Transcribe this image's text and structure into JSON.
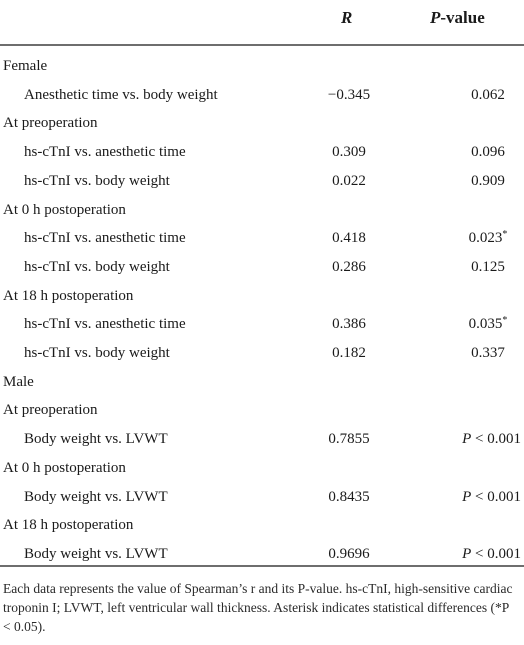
{
  "header": {
    "r_label": "R",
    "p_italic": "P",
    "p_rest": "-value"
  },
  "rows": [
    {
      "label": "Female",
      "indent": 0
    },
    {
      "label": "Anesthetic time vs. body weight",
      "indent": 1,
      "r": "−0.345",
      "p": "0.062"
    },
    {
      "label": "At preoperation",
      "indent": 0
    },
    {
      "label": "hs-cTnI vs. anesthetic time",
      "indent": 1,
      "r": "0.309",
      "p": "0.096"
    },
    {
      "label": "hs-cTnI vs. body weight",
      "indent": 1,
      "r": "0.022",
      "p": "0.909"
    },
    {
      "label": "At 0 h postoperation",
      "indent": 0
    },
    {
      "label": "hs-cTnI vs. anesthetic time",
      "indent": 1,
      "r": "0.418",
      "p": "0.023",
      "p_mark": "*"
    },
    {
      "label": "hs-cTnI vs. body weight",
      "indent": 1,
      "r": "0.286",
      "p": "0.125"
    },
    {
      "label": "At 18 h postoperation",
      "indent": 0
    },
    {
      "label": "hs-cTnI vs. anesthetic time",
      "indent": 1,
      "r": "0.386",
      "p": "0.035",
      "p_mark": "*"
    },
    {
      "label": "hs-cTnI vs. body weight",
      "indent": 1,
      "r": "0.182",
      "p": "0.337"
    },
    {
      "label": "Male",
      "indent": 0
    },
    {
      "label": "At preoperation",
      "indent": 0
    },
    {
      "label": "Body weight vs. LVWT",
      "indent": 1,
      "r": "0.7855",
      "p": "P < 0.001"
    },
    {
      "label": "At 0 h postoperation",
      "indent": 0
    },
    {
      "label": "Body weight vs. LVWT",
      "indent": 1,
      "r": "0.8435",
      "p": "P < 0.001"
    },
    {
      "label": "At 18 h postoperation",
      "indent": 0
    },
    {
      "label": "Body weight vs. LVWT",
      "indent": 1,
      "r": "0.9696",
      "p": "P < 0.001"
    }
  ],
  "footnote": "Each data represents the value of Spearman’s r and its P-value. hs-cTnI, high-sensitive cardiac troponin I; LVWT, left ventricular wall thickness. Asterisk indicates statistical differences (*P < 0.05)."
}
